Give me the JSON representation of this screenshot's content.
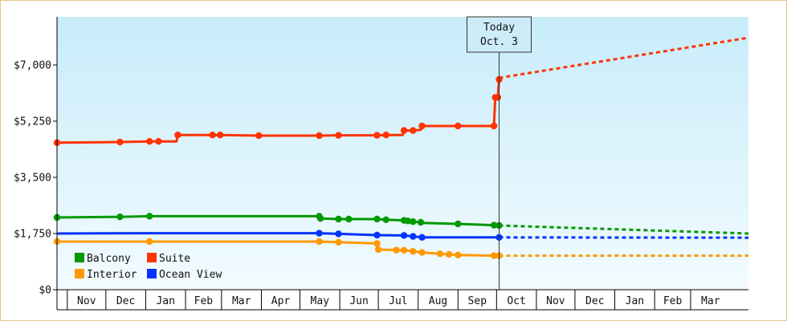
{
  "chart_data": {
    "type": "line",
    "title": "",
    "xlabel": "",
    "ylabel": "",
    "ylim": [
      0,
      8500
    ],
    "y_ticks": [
      {
        "value": 0,
        "label": "$0"
      },
      {
        "value": 1750,
        "label": "$1,750"
      },
      {
        "value": 3500,
        "label": "$3,500"
      },
      {
        "value": 5250,
        "label": "$5,250"
      },
      {
        "value": 7000,
        "label": "$7,000"
      }
    ],
    "x_range": [
      "2012-10-24",
      "2014-04-15"
    ],
    "months": [
      {
        "label": "Nov",
        "start": "2012-11-01",
        "end": "2012-12-01"
      },
      {
        "label": "Dec",
        "start": "2012-12-01",
        "end": "2013-01-01"
      },
      {
        "label": "Jan",
        "start": "2013-01-01",
        "end": "2013-02-01"
      },
      {
        "label": "Feb",
        "start": "2013-02-01",
        "end": "2013-03-01"
      },
      {
        "label": "Mar",
        "start": "2013-03-01",
        "end": "2013-04-01"
      },
      {
        "label": "Apr",
        "start": "2013-04-01",
        "end": "2013-05-01"
      },
      {
        "label": "May",
        "start": "2013-05-01",
        "end": "2013-06-01"
      },
      {
        "label": "Jun",
        "start": "2013-06-01",
        "end": "2013-07-01"
      },
      {
        "label": "Jul",
        "start": "2013-07-01",
        "end": "2013-08-01"
      },
      {
        "label": "Aug",
        "start": "2013-08-01",
        "end": "2013-09-01"
      },
      {
        "label": "Sep",
        "start": "2013-09-01",
        "end": "2013-10-01"
      },
      {
        "label": "Oct",
        "start": "2013-10-01",
        "end": "2013-11-01"
      },
      {
        "label": "Nov",
        "start": "2013-11-01",
        "end": "2013-12-01"
      },
      {
        "label": "Dec",
        "start": "2013-12-01",
        "end": "2014-01-01"
      },
      {
        "label": "Jan",
        "start": "2014-01-01",
        "end": "2014-02-01"
      },
      {
        "label": "Feb",
        "start": "2014-02-01",
        "end": "2014-03-01"
      },
      {
        "label": "Mar",
        "start": "2014-03-01",
        "end": "2014-04-01"
      }
    ],
    "today": {
      "date": "2013-10-03",
      "line1": "Today",
      "line2": "Oct. 3"
    },
    "grid": false,
    "legend_placement": "bottom-left",
    "colors": {
      "background_top": "#c8ecfa",
      "background_bottom": "#f2fbff",
      "axis": "#000000",
      "border": "#e8c48a"
    },
    "series": [
      {
        "name": "Suite",
        "color": "#ff3300",
        "points": [
          [
            "2012-10-24",
            4580
          ],
          [
            "2012-12-12",
            4600
          ],
          [
            "2013-01-04",
            4620
          ],
          [
            "2013-01-11",
            4620
          ],
          [
            "2013-01-25",
            4620
          ],
          [
            "2013-01-26",
            4820
          ],
          [
            "2013-02-22",
            4820
          ],
          [
            "2013-02-28",
            4820
          ],
          [
            "2013-03-30",
            4800
          ],
          [
            "2013-05-16",
            4800
          ],
          [
            "2013-05-31",
            4810
          ],
          [
            "2013-06-30",
            4810
          ],
          [
            "2013-07-07",
            4820
          ],
          [
            "2013-07-20",
            4820
          ],
          [
            "2013-07-21",
            4960
          ],
          [
            "2013-07-28",
            4960
          ],
          [
            "2013-08-03",
            4980
          ],
          [
            "2013-08-04",
            5100
          ],
          [
            "2013-09-01",
            5100
          ],
          [
            "2013-09-29",
            5100
          ],
          [
            "2013-09-30",
            5990
          ],
          [
            "2013-10-02",
            5990
          ],
          [
            "2013-10-03",
            6550
          ]
        ],
        "marker_dates": [
          "2012-10-24",
          "2012-12-12",
          "2013-01-04",
          "2013-01-11",
          "2013-01-26",
          "2013-02-22",
          "2013-02-28",
          "2013-03-30",
          "2013-05-16",
          "2013-05-31",
          "2013-06-30",
          "2013-07-07",
          "2013-07-21",
          "2013-07-28",
          "2013-08-04",
          "2013-09-01",
          "2013-09-29",
          "2013-09-30",
          "2013-10-02",
          "2013-10-03"
        ],
        "forecast": [
          [
            "2013-10-03",
            6600
          ],
          [
            "2014-04-15",
            7850
          ]
        ]
      },
      {
        "name": "Balcony",
        "color": "#009900",
        "points": [
          [
            "2012-10-24",
            2250
          ],
          [
            "2012-12-12",
            2270
          ],
          [
            "2013-01-04",
            2290
          ],
          [
            "2013-05-16",
            2290
          ],
          [
            "2013-05-17",
            2220
          ],
          [
            "2013-05-31",
            2200
          ],
          [
            "2013-06-30",
            2200
          ],
          [
            "2013-07-07",
            2180
          ],
          [
            "2013-07-21",
            2160
          ],
          [
            "2013-07-28",
            2120
          ],
          [
            "2013-08-03",
            2100
          ],
          [
            "2013-08-04",
            2080
          ],
          [
            "2013-09-01",
            2050
          ],
          [
            "2013-09-29",
            2010
          ],
          [
            "2013-10-03",
            2000
          ]
        ],
        "marker_dates": [
          "2012-10-24",
          "2012-12-12",
          "2013-01-04",
          "2013-05-16",
          "2013-05-17",
          "2013-05-31",
          "2013-06-08",
          "2013-06-30",
          "2013-07-07",
          "2013-07-21",
          "2013-07-24",
          "2013-07-28",
          "2013-08-03",
          "2013-09-01",
          "2013-09-29",
          "2013-10-03"
        ],
        "forecast": [
          [
            "2013-10-03",
            2000
          ],
          [
            "2014-04-15",
            1750
          ]
        ]
      },
      {
        "name": "Ocean View",
        "color": "#0033ff",
        "points": [
          [
            "2012-10-24",
            1750
          ],
          [
            "2013-01-04",
            1760
          ],
          [
            "2013-05-16",
            1760
          ],
          [
            "2013-05-31",
            1740
          ],
          [
            "2013-06-30",
            1700
          ],
          [
            "2013-07-21",
            1690
          ],
          [
            "2013-08-04",
            1630
          ],
          [
            "2013-10-03",
            1630
          ]
        ],
        "marker_dates": [
          "2013-05-16",
          "2013-05-31",
          "2013-06-30",
          "2013-07-21",
          "2013-07-28",
          "2013-08-04",
          "2013-10-03"
        ],
        "forecast": [
          [
            "2013-10-03",
            1630
          ],
          [
            "2014-04-15",
            1620
          ]
        ]
      },
      {
        "name": "Interior",
        "color": "#ff9900",
        "points": [
          [
            "2012-10-24",
            1500
          ],
          [
            "2013-01-04",
            1500
          ],
          [
            "2013-05-16",
            1500
          ],
          [
            "2013-05-31",
            1480
          ],
          [
            "2013-06-30",
            1440
          ],
          [
            "2013-06-30",
            1250
          ],
          [
            "2013-07-21",
            1230
          ],
          [
            "2013-08-04",
            1160
          ],
          [
            "2013-09-01",
            1080
          ],
          [
            "2013-09-29",
            1060
          ],
          [
            "2013-10-03",
            1060
          ]
        ],
        "marker_dates": [
          "2012-10-24",
          "2013-01-04",
          "2013-05-16",
          "2013-05-31",
          "2013-06-30",
          "2013-07-01",
          "2013-07-15",
          "2013-07-21",
          "2013-07-28",
          "2013-08-04",
          "2013-08-18",
          "2013-08-25",
          "2013-09-01",
          "2013-09-29",
          "2013-10-03"
        ],
        "forecast": [
          [
            "2013-10-03",
            1060
          ],
          [
            "2014-04-15",
            1060
          ]
        ]
      }
    ],
    "legend": [
      {
        "name": "Balcony",
        "color": "#009900"
      },
      {
        "name": "Suite",
        "color": "#ff3300"
      },
      {
        "name": "Interior",
        "color": "#ff9900"
      },
      {
        "name": "Ocean View",
        "color": "#0033ff"
      }
    ]
  }
}
